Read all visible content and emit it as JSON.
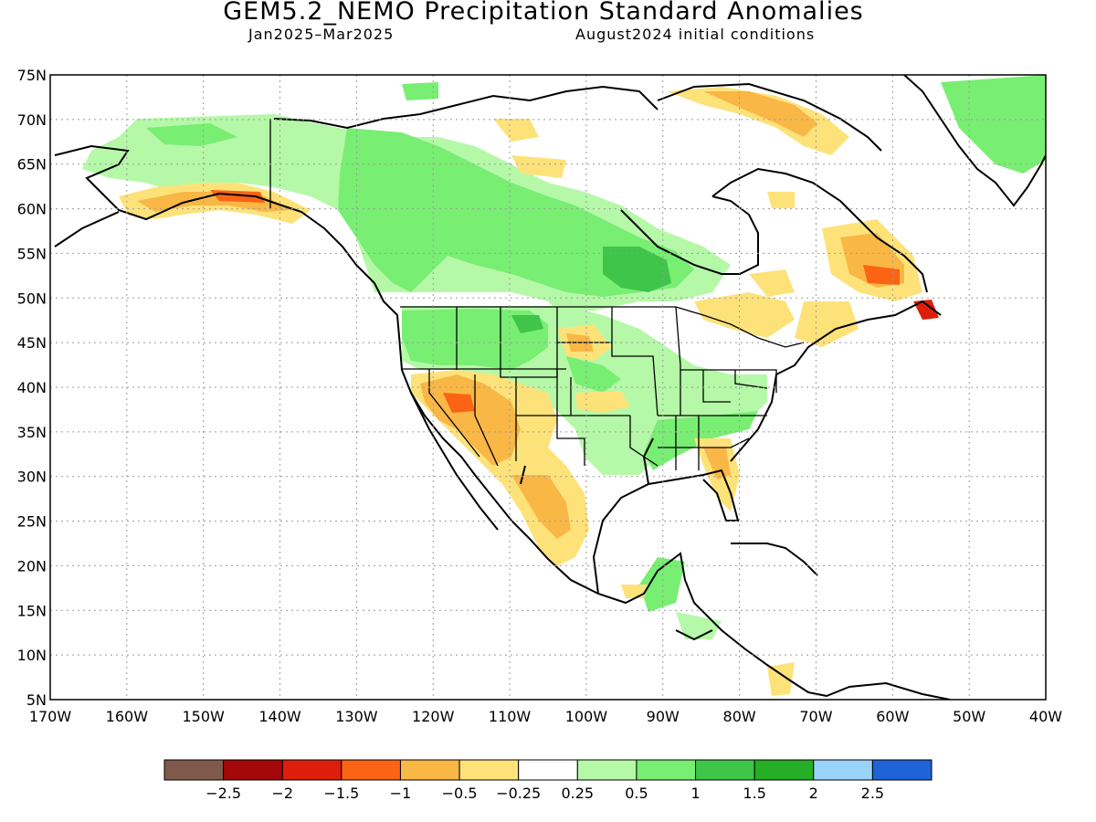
{
  "title": "GEM5.2_NEMO Precipitation Standard Anomalies",
  "period": "Jan2025–Mar2025",
  "initial_conditions": "August2024 initial conditions",
  "map": {
    "lon_min": -170,
    "lon_max": -40,
    "lat_min": 5,
    "lat_max": 75,
    "lat_labels": [
      "75N",
      "70N",
      "65N",
      "60N",
      "55N",
      "50N",
      "45N",
      "40N",
      "35N",
      "30N",
      "25N",
      "20N",
      "15N",
      "10N",
      "5N"
    ],
    "lon_labels": [
      "170W",
      "160W",
      "150W",
      "140W",
      "130W",
      "120W",
      "110W",
      "100W",
      "90W",
      "80W",
      "70W",
      "60W",
      "50W",
      "40W"
    ],
    "gridlines": "dotted"
  },
  "colorbar": {
    "colors": [
      "#7f5a4c",
      "#a50808",
      "#dc1e0a",
      "#fa6414",
      "#f9b746",
      "#fde27a",
      "#ffffff",
      "#b5f8a8",
      "#78ee73",
      "#3ec54a",
      "#25ae26",
      "#9ad3fa",
      "#1e64d6"
    ],
    "labels": [
      "−2.5",
      "−2",
      "−1.5",
      "−1",
      "−0.5",
      "−0.25",
      "0.25",
      "0.5",
      "1",
      "1.5",
      "2",
      "2.5"
    ]
  }
}
